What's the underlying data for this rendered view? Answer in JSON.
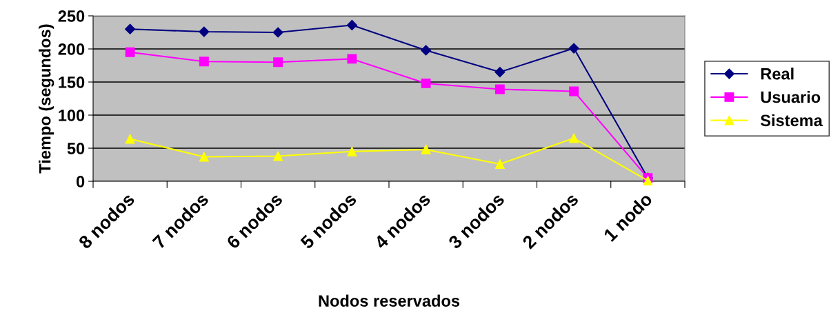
{
  "chart_data": {
    "type": "line",
    "xlabel": "Nodos reservados",
    "ylabel": "Tiempo (segundos)",
    "categories": [
      "8 nodos",
      "7 nodos",
      "6 nodos",
      "5 nodos",
      "4 nodos",
      "3 nodos",
      "2 nodos",
      "1 nodo"
    ],
    "series": [
      {
        "name": "Real",
        "color": "#000080",
        "marker": "diamond",
        "values": [
          230,
          226,
          225,
          236,
          198,
          165,
          201,
          5
        ]
      },
      {
        "name": "Usuario",
        "color": "#ff00ff",
        "marker": "square",
        "values": [
          195,
          181,
          180,
          185,
          148,
          139,
          136,
          5
        ]
      },
      {
        "name": "Sistema",
        "color": "#ffff00",
        "marker": "triangle",
        "values": [
          64,
          37,
          38,
          45,
          48,
          26,
          65,
          1
        ]
      }
    ],
    "ylim": [
      0,
      250
    ],
    "yticks": [
      0,
      50,
      100,
      150,
      200,
      250
    ],
    "grid": "y",
    "legend": "right"
  }
}
